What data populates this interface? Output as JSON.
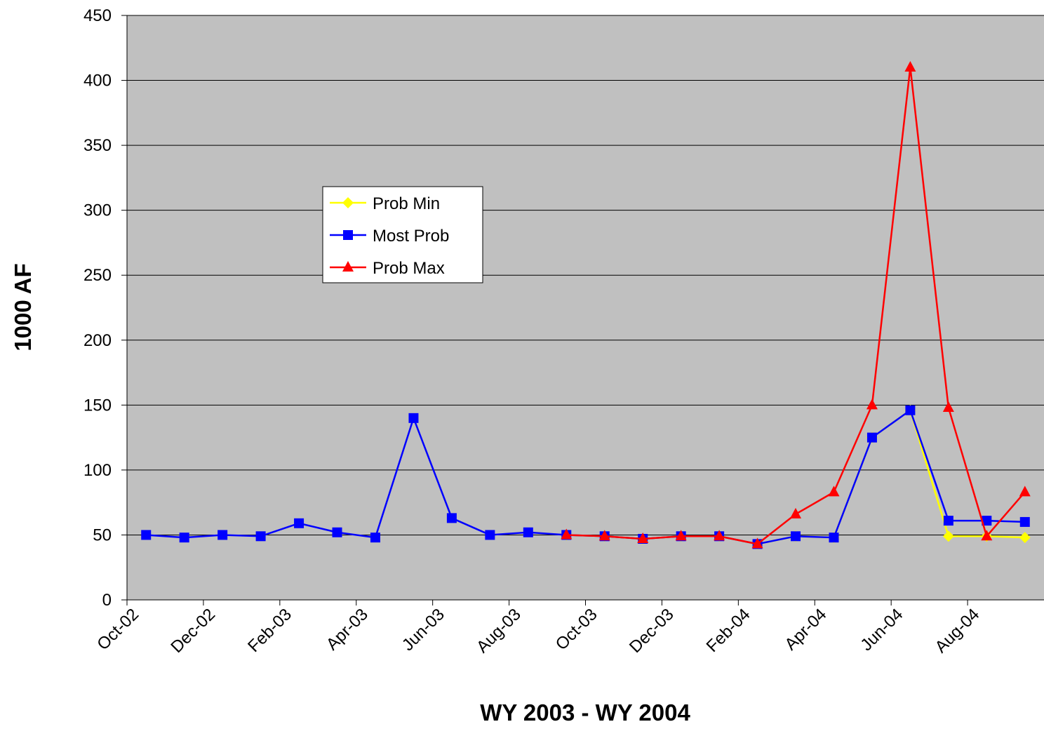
{
  "chart_data": {
    "type": "line",
    "x_label": "WY 2003 - WY 2004",
    "y_label": "1000 AF",
    "categories": [
      "Oct-02",
      null,
      "Dec-02",
      null,
      "Feb-03",
      null,
      "Apr-03",
      null,
      "Jun-03",
      null,
      "Aug-03",
      null,
      "Oct-03",
      null,
      "Dec-03",
      null,
      "Feb-04",
      null,
      "Apr-04",
      null,
      "Jun-04",
      null,
      "Aug-04",
      null
    ],
    "series": [
      {
        "name": "Prob Min",
        "color": "#ffff00",
        "marker": "diamond",
        "values": [
          null,
          null,
          null,
          null,
          null,
          null,
          null,
          null,
          null,
          null,
          null,
          50,
          49,
          47,
          49,
          49,
          43,
          49,
          48,
          125,
          146,
          49,
          49,
          48
        ]
      },
      {
        "name": "Most Prob",
        "color": "#0000ff",
        "marker": "square",
        "values": [
          50,
          48,
          50,
          49,
          59,
          52,
          48,
          140,
          63,
          50,
          52,
          50,
          49,
          47,
          49,
          49,
          43,
          49,
          48,
          125,
          146,
          61,
          61,
          60
        ]
      },
      {
        "name": "Prob Max",
        "color": "#ff0000",
        "marker": "triangle",
        "values": [
          null,
          null,
          null,
          null,
          null,
          null,
          null,
          null,
          null,
          null,
          null,
          50,
          49,
          47,
          49,
          49,
          43,
          66,
          83,
          150,
          410,
          148,
          49,
          83
        ]
      }
    ],
    "ylim": [
      0,
      450
    ],
    "yticks": [
      0,
      50,
      100,
      150,
      200,
      250,
      300,
      350,
      400,
      450
    ],
    "grid": true,
    "plot_background": "#c0c0c0"
  }
}
